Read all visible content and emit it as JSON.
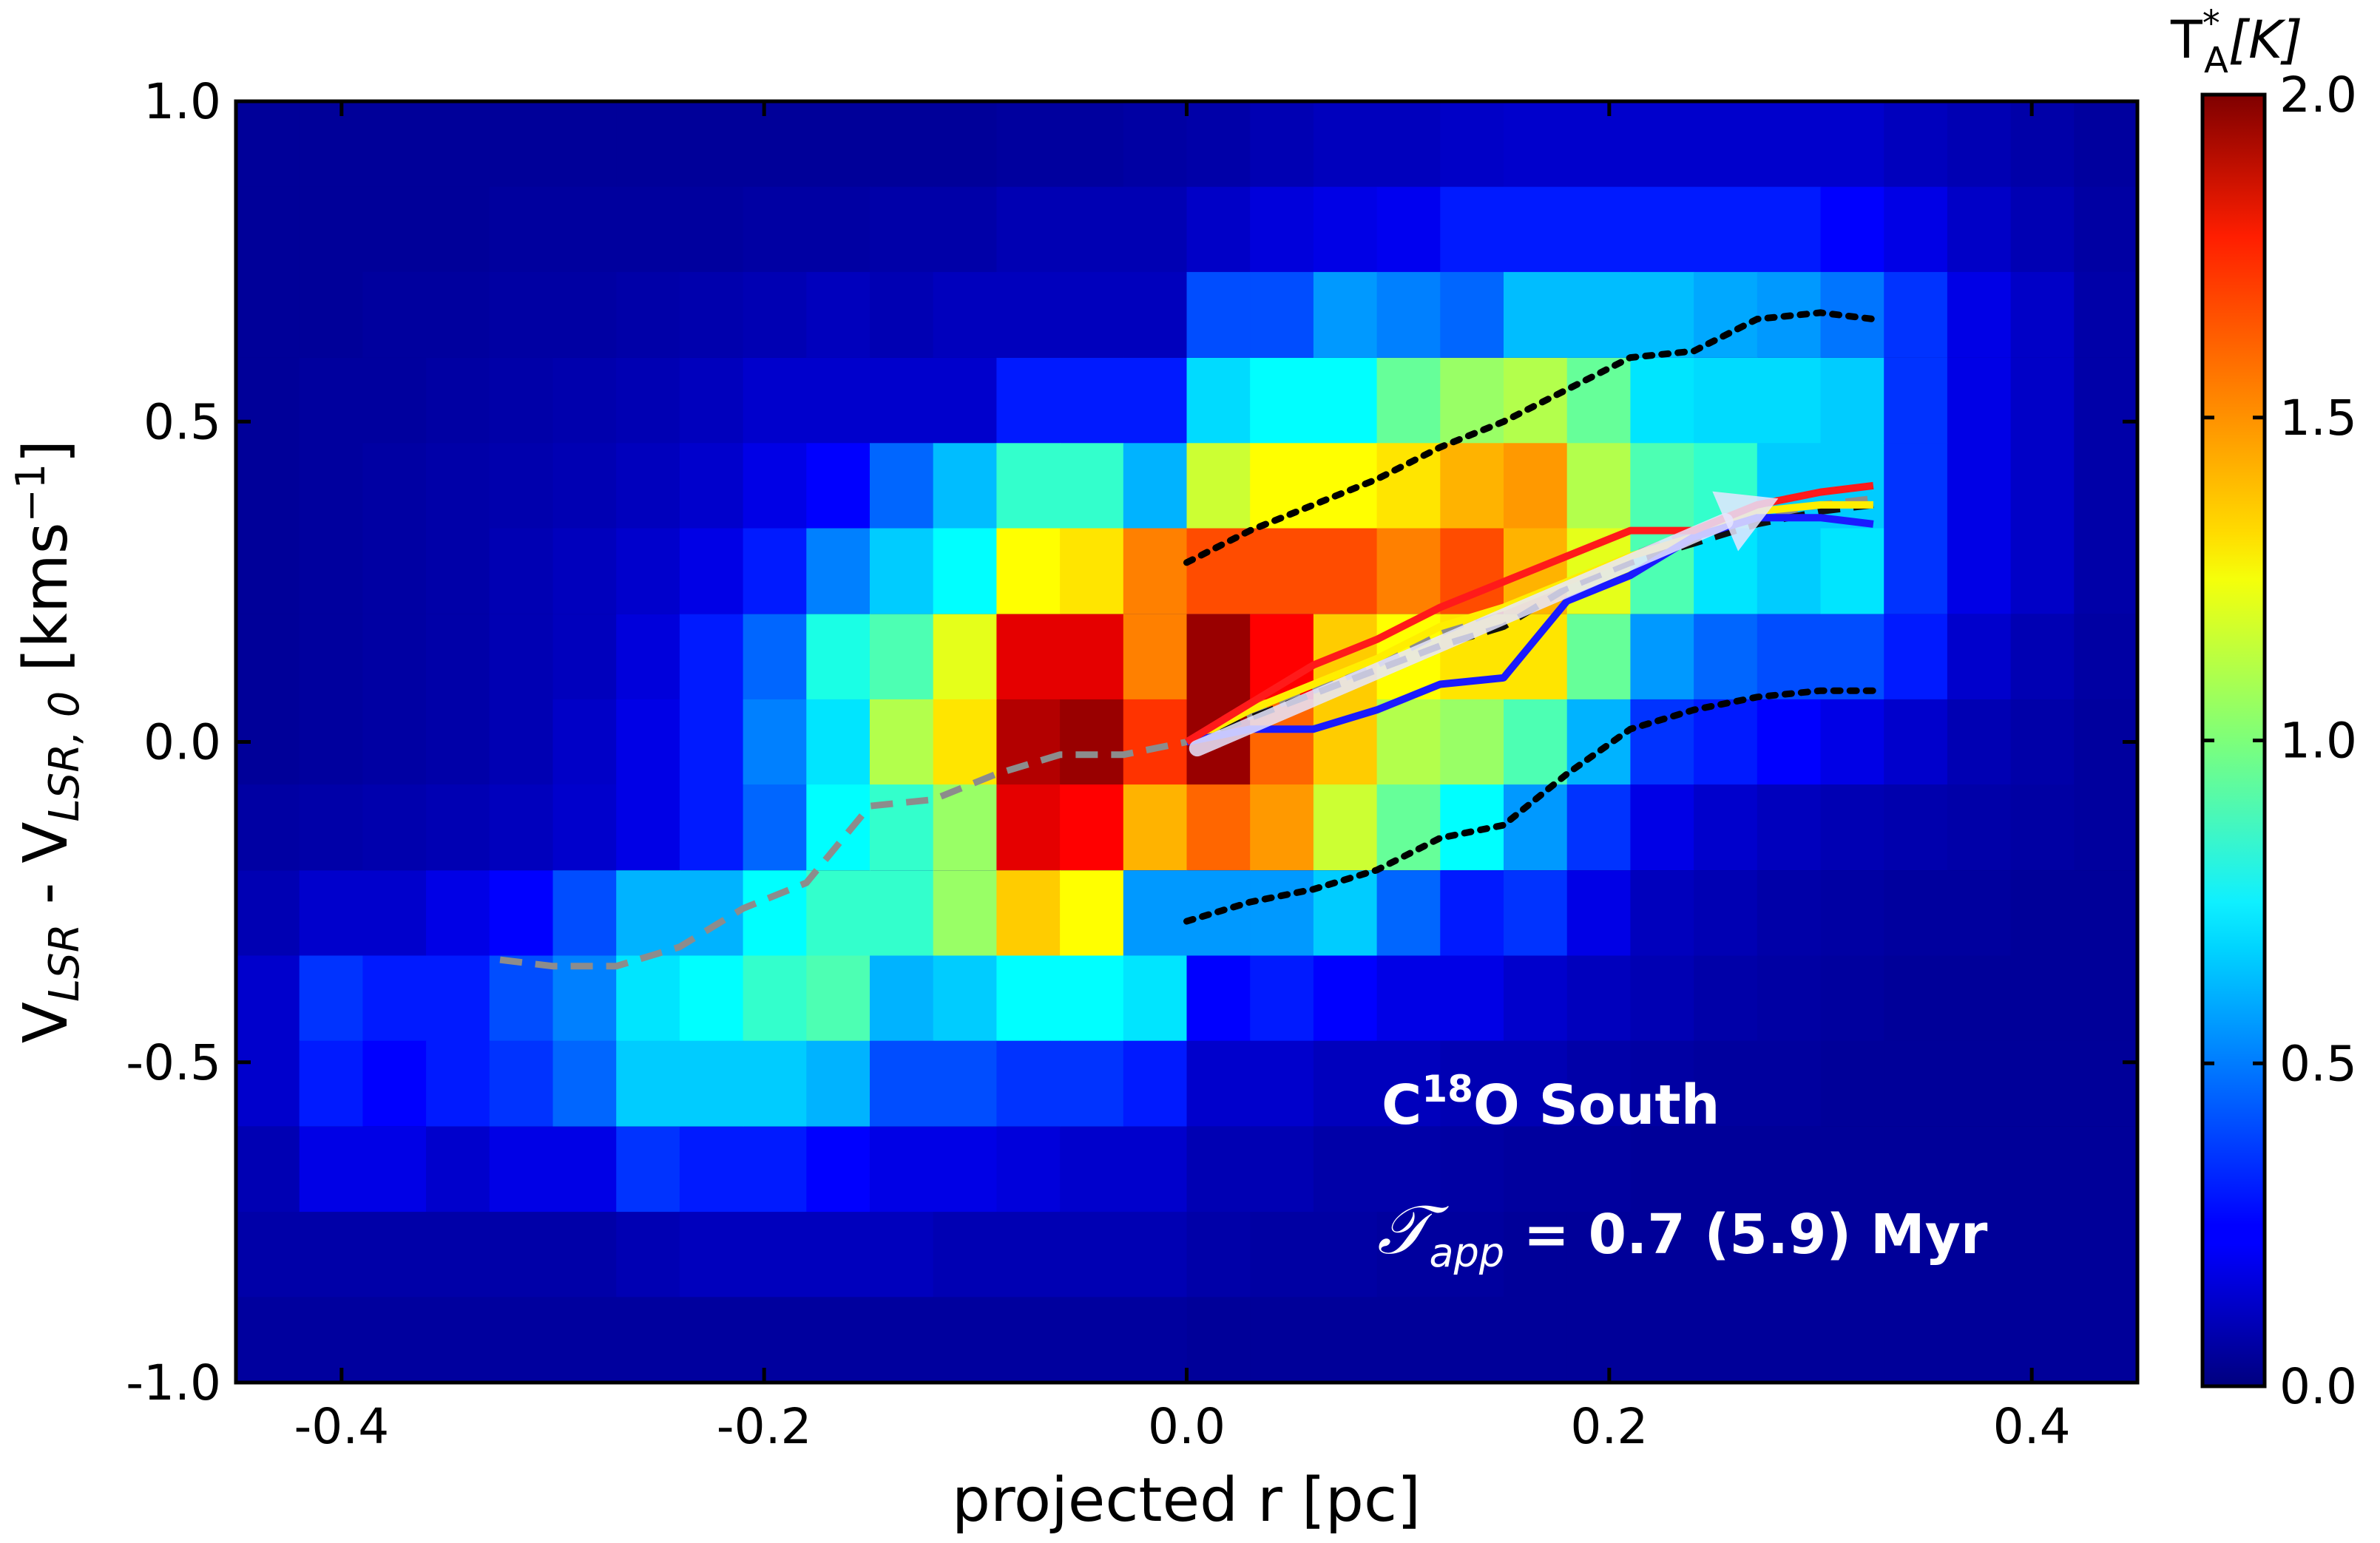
{
  "chart_data": {
    "type": "heatmap",
    "title": "",
    "xlabel": "projected r [pc]",
    "ylabel": {
      "base": "V",
      "sub1": "LSR",
      "mid": " - V",
      "sub2": "LSR, 0",
      "unit_open": " [kms",
      "unit_sup": "−1",
      "unit_close": "]"
    },
    "x_range": [
      -0.45,
      0.45
    ],
    "y_range": [
      -1.0,
      1.0
    ],
    "x_ticks": [
      -0.4,
      -0.2,
      0.0,
      0.2,
      0.4
    ],
    "x_tick_labels": [
      "-0.4",
      "-0.2",
      "0.0",
      "0.2",
      "0.4"
    ],
    "y_ticks": [
      -1.0,
      -0.5,
      0.0,
      0.5,
      1.0
    ],
    "y_tick_labels": [
      "-1.0",
      "-0.5",
      "0.0",
      "0.5",
      "1.0"
    ],
    "colorbar": {
      "label_base": "T",
      "label_sup": "*",
      "label_sub": "A",
      "label_unit": "[K]",
      "range": [
        0.0,
        2.0
      ],
      "ticks": [
        0.0,
        0.5,
        1.0,
        1.5,
        2.0
      ],
      "tick_labels": [
        "0.0",
        "0.5",
        "1.0",
        "1.5",
        "2.0"
      ],
      "colormap": "jet"
    },
    "grid": {
      "x_centers": [
        -0.435,
        -0.405,
        -0.375,
        -0.345,
        -0.315,
        -0.285,
        -0.255,
        -0.225,
        -0.195,
        -0.165,
        -0.135,
        -0.105,
        -0.075,
        -0.045,
        -0.015,
        0.015,
        0.045,
        0.075,
        0.105,
        0.135,
        0.165,
        0.195,
        0.225,
        0.255,
        0.285,
        0.315,
        0.345,
        0.375,
        0.405,
        0.435
      ],
      "y_centers": [
        0.933,
        0.8,
        0.667,
        0.533,
        0.4,
        0.267,
        0.133,
        0.0,
        -0.133,
        -0.267,
        -0.4,
        -0.533,
        -0.667,
        -0.8,
        -0.933
      ],
      "values": [
        [
          0.05,
          0.05,
          0.05,
          0.05,
          0.05,
          0.05,
          0.05,
          0.05,
          0.05,
          0.05,
          0.05,
          0.05,
          0.06,
          0.06,
          0.07,
          0.08,
          0.1,
          0.12,
          0.12,
          0.14,
          0.15,
          0.15,
          0.15,
          0.15,
          0.15,
          0.15,
          0.12,
          0.1,
          0.08,
          0.06
        ],
        [
          0.05,
          0.05,
          0.05,
          0.05,
          0.06,
          0.06,
          0.06,
          0.06,
          0.07,
          0.07,
          0.08,
          0.08,
          0.1,
          0.1,
          0.1,
          0.14,
          0.18,
          0.2,
          0.22,
          0.3,
          0.3,
          0.3,
          0.3,
          0.3,
          0.3,
          0.25,
          0.2,
          0.14,
          0.1,
          0.07
        ],
        [
          0.05,
          0.05,
          0.06,
          0.06,
          0.07,
          0.07,
          0.08,
          0.09,
          0.1,
          0.12,
          0.1,
          0.12,
          0.12,
          0.12,
          0.12,
          0.4,
          0.4,
          0.55,
          0.5,
          0.45,
          0.62,
          0.62,
          0.62,
          0.58,
          0.55,
          0.48,
          0.35,
          0.2,
          0.14,
          0.08
        ],
        [
          0.05,
          0.06,
          0.06,
          0.07,
          0.08,
          0.09,
          0.1,
          0.12,
          0.15,
          0.15,
          0.15,
          0.15,
          0.3,
          0.3,
          0.3,
          0.68,
          0.75,
          0.75,
          0.95,
          1.05,
          1.1,
          0.95,
          0.7,
          0.68,
          0.68,
          0.65,
          0.35,
          0.2,
          0.14,
          0.08
        ],
        [
          0.05,
          0.06,
          0.07,
          0.08,
          0.09,
          0.1,
          0.12,
          0.15,
          0.2,
          0.25,
          0.45,
          0.62,
          0.85,
          0.85,
          0.6,
          1.15,
          1.25,
          1.25,
          1.3,
          1.4,
          1.45,
          1.1,
          0.9,
          0.85,
          0.65,
          0.65,
          0.35,
          0.2,
          0.14,
          0.08
        ],
        [
          0.05,
          0.06,
          0.07,
          0.08,
          0.1,
          0.12,
          0.15,
          0.2,
          0.3,
          0.5,
          0.65,
          0.75,
          1.25,
          1.3,
          1.5,
          1.6,
          1.6,
          1.6,
          1.5,
          1.6,
          1.4,
          1.2,
          0.9,
          0.7,
          0.65,
          0.7,
          0.35,
          0.2,
          0.14,
          0.08
        ],
        [
          0.05,
          0.06,
          0.07,
          0.08,
          0.1,
          0.12,
          0.18,
          0.3,
          0.45,
          0.8,
          0.9,
          1.2,
          1.8,
          1.8,
          1.5,
          1.95,
          1.75,
          1.35,
          1.25,
          1.3,
          1.3,
          0.95,
          0.55,
          0.45,
          0.4,
          0.4,
          0.3,
          0.15,
          0.1,
          0.07
        ],
        [
          0.05,
          0.06,
          0.07,
          0.08,
          0.1,
          0.14,
          0.2,
          0.3,
          0.5,
          0.7,
          1.1,
          1.3,
          1.9,
          1.95,
          1.65,
          1.95,
          1.55,
          1.35,
          1.1,
          1.05,
          0.9,
          0.6,
          0.35,
          0.3,
          0.25,
          0.2,
          0.15,
          0.1,
          0.08,
          0.06
        ],
        [
          0.07,
          0.08,
          0.09,
          0.1,
          0.12,
          0.15,
          0.2,
          0.3,
          0.45,
          0.75,
          0.85,
          1.05,
          1.8,
          1.75,
          1.4,
          1.55,
          1.45,
          1.15,
          0.95,
          0.75,
          0.55,
          0.35,
          0.2,
          0.15,
          0.12,
          0.1,
          0.09,
          0.08,
          0.07,
          0.06
        ],
        [
          0.1,
          0.15,
          0.15,
          0.2,
          0.25,
          0.4,
          0.6,
          0.6,
          0.75,
          0.85,
          0.85,
          1.05,
          1.35,
          1.25,
          0.55,
          0.55,
          0.55,
          0.65,
          0.45,
          0.3,
          0.35,
          0.2,
          0.12,
          0.1,
          0.08,
          0.07,
          0.06,
          0.06,
          0.05,
          0.05
        ],
        [
          0.15,
          0.35,
          0.3,
          0.3,
          0.4,
          0.5,
          0.7,
          0.75,
          0.85,
          0.9,
          0.6,
          0.65,
          0.75,
          0.75,
          0.7,
          0.25,
          0.3,
          0.25,
          0.2,
          0.2,
          0.15,
          0.12,
          0.1,
          0.08,
          0.07,
          0.06,
          0.05,
          0.05,
          0.05,
          0.05
        ],
        [
          0.15,
          0.3,
          0.25,
          0.3,
          0.35,
          0.45,
          0.65,
          0.65,
          0.65,
          0.6,
          0.4,
          0.4,
          0.35,
          0.35,
          0.3,
          0.15,
          0.15,
          0.12,
          0.12,
          0.1,
          0.1,
          0.08,
          0.07,
          0.06,
          0.06,
          0.05,
          0.05,
          0.05,
          0.05,
          0.05
        ],
        [
          0.1,
          0.2,
          0.2,
          0.15,
          0.2,
          0.2,
          0.35,
          0.3,
          0.3,
          0.25,
          0.2,
          0.2,
          0.18,
          0.15,
          0.15,
          0.1,
          0.1,
          0.08,
          0.08,
          0.07,
          0.06,
          0.06,
          0.05,
          0.05,
          0.05,
          0.05,
          0.05,
          0.05,
          0.05,
          0.05
        ],
        [
          0.08,
          0.08,
          0.08,
          0.08,
          0.08,
          0.08,
          0.1,
          0.12,
          0.12,
          0.12,
          0.12,
          0.1,
          0.1,
          0.1,
          0.1,
          0.08,
          0.07,
          0.07,
          0.06,
          0.06,
          0.05,
          0.05,
          0.05,
          0.05,
          0.05,
          0.05,
          0.05,
          0.05,
          0.05,
          0.05
        ],
        [
          0.06,
          0.06,
          0.06,
          0.06,
          0.06,
          0.06,
          0.06,
          0.06,
          0.06,
          0.06,
          0.06,
          0.06,
          0.06,
          0.06,
          0.06,
          0.05,
          0.05,
          0.05,
          0.05,
          0.05,
          0.05,
          0.05,
          0.05,
          0.05,
          0.05,
          0.05,
          0.05,
          0.05,
          0.05,
          0.05
        ]
      ]
    },
    "series": [
      {
        "name": "gray dashed profile",
        "style": "dashed",
        "color": "#8c8c8c",
        "x": [
          -0.325,
          -0.3,
          -0.27,
          -0.24,
          -0.21,
          -0.18,
          -0.15,
          -0.12,
          -0.09,
          -0.06,
          -0.03,
          0.0,
          0.03,
          0.06,
          0.09,
          0.12,
          0.15,
          0.18,
          0.21,
          0.24,
          0.27,
          0.3,
          0.325
        ],
        "y": [
          -0.34,
          -0.35,
          -0.35,
          -0.32,
          -0.26,
          -0.22,
          -0.1,
          -0.09,
          -0.05,
          -0.02,
          -0.02,
          0.0,
          0.04,
          0.08,
          0.12,
          0.17,
          0.21,
          0.25,
          0.29,
          0.33,
          0.35,
          0.37,
          0.38
        ]
      },
      {
        "name": "black dashed profile",
        "style": "dashed",
        "color": "#111111",
        "x": [
          0.0,
          0.04,
          0.08,
          0.12,
          0.15,
          0.18,
          0.21,
          0.24,
          0.27,
          0.3,
          0.325
        ],
        "y": [
          0.0,
          0.05,
          0.1,
          0.15,
          0.18,
          0.24,
          0.28,
          0.31,
          0.34,
          0.36,
          0.37
        ]
      },
      {
        "name": "upper dotted envelope",
        "style": "dotted",
        "color": "#000000",
        "x": [
          0.0,
          0.03,
          0.06,
          0.09,
          0.12,
          0.15,
          0.18,
          0.21,
          0.24,
          0.27,
          0.3,
          0.325
        ],
        "y": [
          0.28,
          0.33,
          0.37,
          0.41,
          0.46,
          0.5,
          0.55,
          0.6,
          0.61,
          0.66,
          0.67,
          0.66
        ]
      },
      {
        "name": "lower dotted envelope",
        "style": "dotted",
        "color": "#000000",
        "x": [
          0.0,
          0.03,
          0.06,
          0.09,
          0.12,
          0.15,
          0.18,
          0.21,
          0.24,
          0.27,
          0.3,
          0.325
        ],
        "y": [
          -0.28,
          -0.25,
          -0.23,
          -0.2,
          -0.15,
          -0.13,
          -0.05,
          0.02,
          0.05,
          0.07,
          0.08,
          0.08
        ]
      },
      {
        "name": "red solid",
        "style": "solid",
        "color": "#ff1a1a",
        "x": [
          0.0,
          0.03,
          0.06,
          0.09,
          0.12,
          0.15,
          0.18,
          0.21,
          0.24,
          0.27,
          0.3,
          0.325
        ],
        "y": [
          0.0,
          0.06,
          0.12,
          0.16,
          0.21,
          0.25,
          0.29,
          0.33,
          0.33,
          0.37,
          0.39,
          0.4
        ]
      },
      {
        "name": "yellow solid",
        "style": "solid",
        "color": "#ffee00",
        "x": [
          0.0,
          0.03,
          0.06,
          0.09,
          0.12,
          0.15,
          0.18,
          0.21,
          0.24,
          0.27,
          0.3,
          0.325
        ],
        "y": [
          0.0,
          0.05,
          0.09,
          0.13,
          0.18,
          0.21,
          0.25,
          0.29,
          0.32,
          0.36,
          0.37,
          0.37
        ]
      },
      {
        "name": "blue solid",
        "style": "solid",
        "color": "#1a1aff",
        "x": [
          0.0,
          0.03,
          0.06,
          0.09,
          0.12,
          0.15,
          0.18,
          0.21,
          0.24,
          0.27,
          0.3,
          0.325
        ],
        "y": [
          0.0,
          0.02,
          0.02,
          0.05,
          0.09,
          0.1,
          0.22,
          0.26,
          0.32,
          0.35,
          0.35,
          0.34
        ]
      }
    ],
    "arrow": {
      "color": "#e6e6ff",
      "from": [
        0.005,
        -0.01
      ],
      "to": [
        0.28,
        0.38
      ]
    },
    "annotations": {
      "label_main": "C",
      "label_sup": "18",
      "label_rest": "O South",
      "tau_symbol": "𝒯",
      "tau_sub": "app",
      "tau_text": " = 0.7  (5.9) Myr"
    }
  }
}
